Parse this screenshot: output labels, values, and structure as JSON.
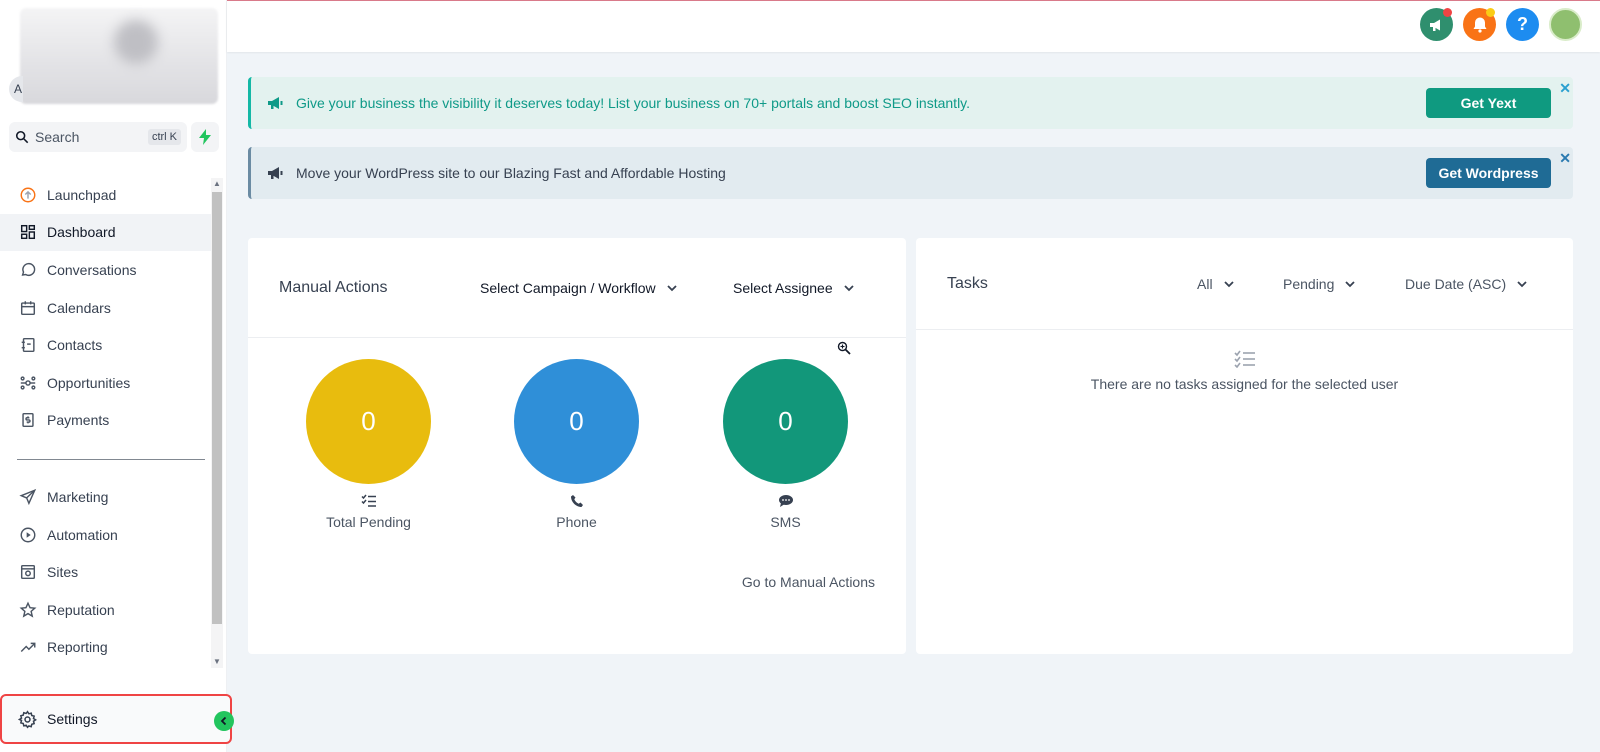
{
  "sidebar": {
    "account_initial": "A",
    "search": {
      "label": "Search",
      "shortcut": "ctrl K"
    },
    "nav_primary": [
      {
        "label": "Launchpad",
        "icon": "launchpad-icon"
      },
      {
        "label": "Dashboard",
        "icon": "dashboard-icon",
        "active": true
      },
      {
        "label": "Conversations",
        "icon": "chat-bubble-icon"
      },
      {
        "label": "Calendars",
        "icon": "calendar-icon"
      },
      {
        "label": "Contacts",
        "icon": "contacts-book-icon"
      },
      {
        "label": "Opportunities",
        "icon": "opportunities-icon"
      },
      {
        "label": "Payments",
        "icon": "payments-icon"
      }
    ],
    "nav_secondary": [
      {
        "label": "Marketing",
        "icon": "paper-plane-icon"
      },
      {
        "label": "Automation",
        "icon": "automation-icon"
      },
      {
        "label": "Sites",
        "icon": "sites-icon"
      },
      {
        "label": "Reputation",
        "icon": "star-icon"
      },
      {
        "label": "Reporting",
        "icon": "trend-icon"
      }
    ],
    "settings_label": "Settings"
  },
  "topbar": {
    "icons": [
      {
        "name": "announcement-icon",
        "color": "#2f8f6e",
        "dot": "#ef4444"
      },
      {
        "name": "bell-icon",
        "color": "#f97316",
        "dot": "#facc15"
      },
      {
        "name": "help-icon",
        "color": "#1d8cf0"
      },
      {
        "name": "avatar",
        "color": "#8fbf6f"
      }
    ]
  },
  "banners": [
    {
      "message": "Give your business the visibility it deserves today! List your business on 70+ portals and boost SEO instantly.",
      "button": "Get Yext",
      "close": "✕"
    },
    {
      "message": "Move your WordPress site to our Blazing Fast and Affordable Hosting",
      "button": "Get Wordpress",
      "close": "✕"
    }
  ],
  "manual_actions": {
    "title": "Manual Actions",
    "campaign_dropdown": "Select Campaign / Workflow",
    "assignee_dropdown": "Select Assignee",
    "stats": [
      {
        "value": "0",
        "label": "Total Pending",
        "color": "#e8bc0e"
      },
      {
        "value": "0",
        "label": "Phone",
        "color": "#2f8fd8"
      },
      {
        "value": "0",
        "label": "SMS",
        "color": "#12977a"
      }
    ],
    "link": "Go to Manual Actions"
  },
  "tasks": {
    "title": "Tasks",
    "filters": [
      "All",
      "Pending",
      "Due Date (ASC)"
    ],
    "empty_message": "There are no tasks assigned for the selected user"
  },
  "colors": {
    "accent_green": "#0f9a80",
    "accent_blue": "#1f6b95",
    "settings_highlight": "#ef4444"
  }
}
